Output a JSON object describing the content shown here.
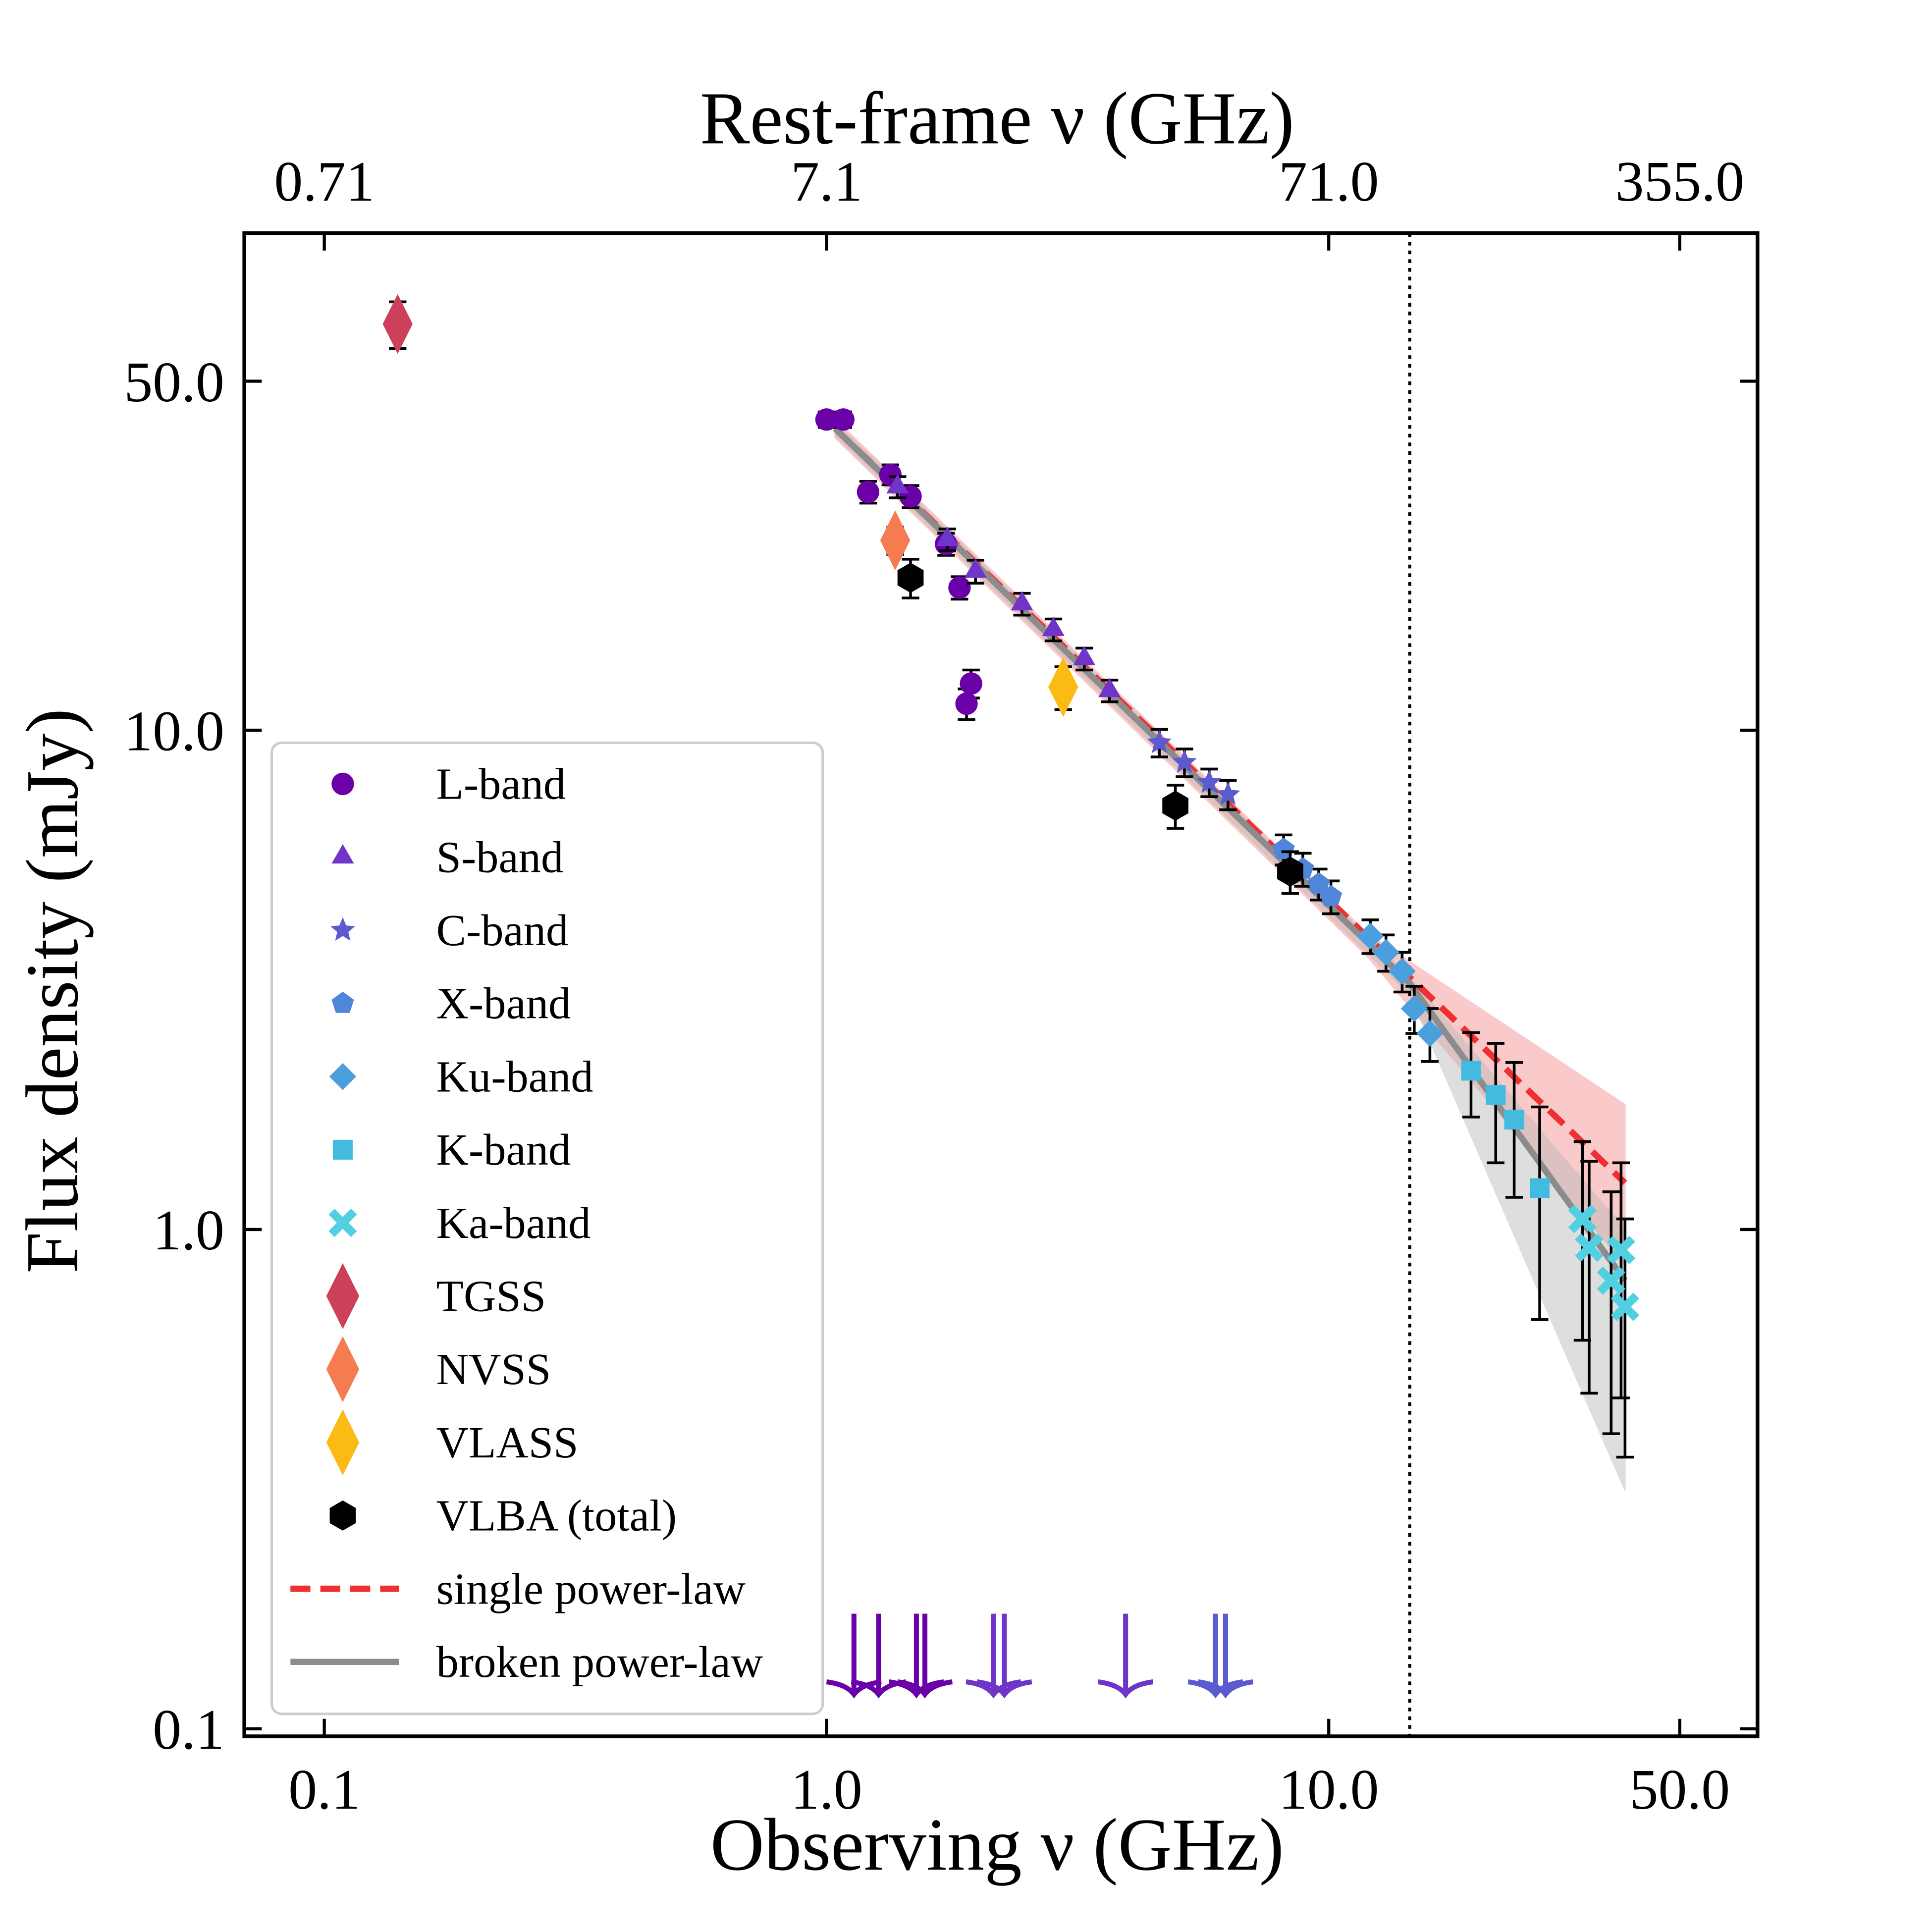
{
  "chart_data": {
    "type": "scatter",
    "xlabel": "Observing ν (GHz)",
    "x2label": "Rest-frame ν (GHz)",
    "ylabel": "Flux density (mJy)",
    "xscale": "log",
    "yscale": "log",
    "xlim": [
      0.0693,
      71.4
    ],
    "xticks": [
      0.1,
      {
        "value": 1,
        "label": "1.0"
      },
      {
        "value": 10,
        "label": "10.0"
      },
      {
        "value": 50,
        "label": "50.0"
      }
    ],
    "x2lim": [
      0.492,
      507
    ],
    "x2ticks": [
      0.71,
      7.1,
      {
        "value": 71,
        "label": "71.0"
      },
      {
        "value": 355,
        "label": "355.0"
      }
    ],
    "ylim": [
      0.0966,
      99
    ],
    "yticks": [
      0.1,
      {
        "value": 1,
        "label": "1.0"
      },
      {
        "value": 10,
        "label": "10.0"
      },
      {
        "value": 50,
        "label": "50.0"
      }
    ],
    "vlines": [
      14.5
    ],
    "legend": "lower left",
    "series": [
      {
        "name": "L-band",
        "color": "#6a00a8",
        "marker": "circle",
        "x": [
          1.0,
          1.08,
          1.21,
          1.34,
          1.47,
          1.73,
          1.84,
          1.94,
          1.9
        ],
        "values": [
          41.9,
          41.9,
          30.0,
          32.5,
          29.4,
          23.6,
          19.3,
          12.4,
          11.3
        ],
        "errors": [
          1.5,
          1.5,
          1.5,
          1.5,
          1.5,
          1.2,
          1.0,
          0.8,
          0.8
        ],
        "limit_x": [
          1.134,
          1.27,
          1.51,
          1.57
        ],
        "limit_values": [
          0.17,
          0.17,
          0.17,
          0.17
        ]
      },
      {
        "name": "S-band",
        "color": "#6f35c8",
        "marker": "triangle",
        "x": [
          1.385,
          1.74,
          1.98,
          2.45,
          2.83,
          3.26,
          3.66
        ],
        "values": [
          30.7,
          24.1,
          20.8,
          17.9,
          15.9,
          13.9,
          12.0
        ],
        "errors": [
          1.5,
          1.2,
          1.1,
          0.9,
          0.8,
          0.7,
          0.6
        ],
        "limit_x": [
          2.15,
          2.26,
          3.94
        ],
        "limit_values": [
          0.17,
          0.17,
          0.17
        ]
      },
      {
        "name": "C-band",
        "color": "#5b5bcf",
        "marker": "star",
        "x": [
          4.6,
          5.16,
          5.78,
          6.3
        ],
        "values": [
          9.44,
          8.62,
          7.86,
          7.43
        ],
        "errors": [
          0.6,
          0.55,
          0.5,
          0.5
        ],
        "limit_x": [
          5.95,
          6.23
        ],
        "limit_values": [
          0.17,
          0.17
        ]
      },
      {
        "name": "X-band",
        "color": "#4f86d8",
        "marker": "pentagon",
        "x": [
          8.13,
          8.88,
          9.55,
          10.1
        ],
        "values": [
          5.77,
          5.27,
          4.92,
          4.64
        ],
        "errors": [
          0.4,
          0.4,
          0.35,
          0.35
        ]
      },
      {
        "name": "Ku-band",
        "color": "#4a9fdc",
        "marker": "diamond",
        "x": [
          12.1,
          13.0,
          14.0,
          14.8,
          15.9
        ],
        "values": [
          3.87,
          3.59,
          3.29,
          2.77,
          2.47
        ],
        "errors": [
          0.3,
          0.3,
          0.3,
          0.3,
          0.3
        ]
      },
      {
        "name": "K-band",
        "color": "#43bbe0",
        "marker": "square",
        "x": [
          19.2,
          21.5,
          23.4,
          26.3
        ],
        "values": [
          2.08,
          1.86,
          1.66,
          1.21
        ],
        "errors": [
          0.4,
          0.5,
          0.5,
          0.55
        ]
      },
      {
        "name": "Ka-band",
        "color": "#52cfe1",
        "marker": "x",
        "x": [
          32.0,
          33.0,
          36.5,
          38.2,
          38.9
        ],
        "values": [
          1.05,
          0.92,
          0.79,
          0.91,
          0.7
        ],
        "errors": [
          0.45,
          0.45,
          0.4,
          0.45,
          0.35
        ]
      },
      {
        "name": "TGSS",
        "color": "#cc4159",
        "marker": "thin_diamond",
        "x": [
          0.14
        ],
        "values": [
          65.1
        ],
        "errors": [
          7.0
        ]
      },
      {
        "name": "NVSS",
        "color": "#f57b51",
        "marker": "thin_diamond",
        "x": [
          1.37
        ],
        "values": [
          24.0
        ],
        "errors": [
          1.5
        ]
      },
      {
        "name": "VLASS",
        "color": "#fcba14",
        "marker": "thin_diamond",
        "x": [
          2.96
        ],
        "values": [
          12.2
        ],
        "errors": [
          1.2
        ]
      },
      {
        "name": "VLBA (total)",
        "color": "#000000",
        "marker": "hexagon",
        "x": [
          1.47,
          4.95,
          8.38
        ],
        "values": [
          20.2,
          7.06,
          5.21
        ],
        "errors": [
          1.8,
          0.7,
          0.5
        ]
      }
    ],
    "fits": [
      {
        "name": "single power-law",
        "color": "#f03030",
        "style": "dashed",
        "x": [
          1.04,
          38.9
        ],
        "values": [
          40.2,
          1.24
        ],
        "band_color": "#f48a8a",
        "band_x": [
          1.04,
          12.0,
          38.9
        ],
        "band_upper": [
          42.0,
          3.9,
          1.78
        ],
        "band_lower": [
          38.5,
          3.5,
          0.85
        ]
      },
      {
        "name": "broken power-law",
        "color": "#8c8c8c",
        "style": "solid",
        "x": [
          1.04,
          14.5,
          38.9
        ],
        "values": [
          40.2,
          3.11,
          0.79
        ],
        "band_color": "#b8b8b8",
        "band_x": [
          1.04,
          14.5,
          38.9
        ],
        "band_upper": [
          41.5,
          3.2,
          1.0
        ],
        "band_lower": [
          39.0,
          2.95,
          0.3
        ]
      }
    ]
  }
}
